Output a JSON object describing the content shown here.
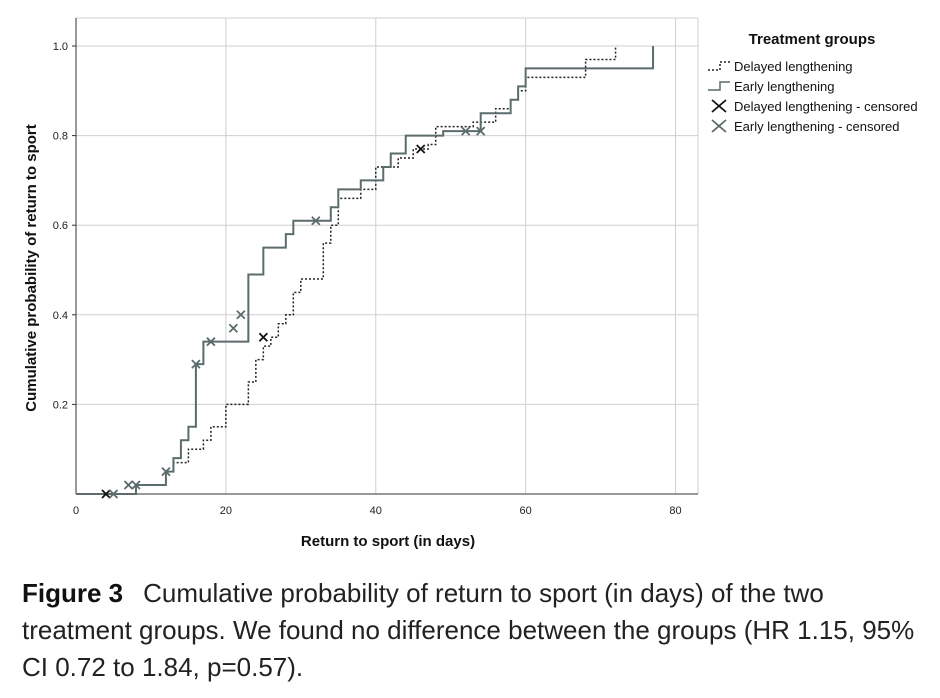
{
  "chart_data": {
    "type": "line",
    "title": "",
    "xlabel": "Return to sport (in days)",
    "ylabel": "Cumulative probability of return to sport",
    "xlim": [
      0,
      83
    ],
    "ylim": [
      0,
      1.0
    ],
    "x_ticks": [
      "0",
      "20",
      "40",
      "60",
      "80"
    ],
    "y_ticks": [
      "0.2",
      "0.4",
      "0.6",
      "0.8",
      "1.0"
    ],
    "grid": true,
    "legend_title": "Treatment groups",
    "legend_position": "top-right",
    "series": [
      {
        "name": "Delayed lengthening",
        "style": "dotted-step",
        "color": "#222222",
        "x": [
          0,
          8,
          12,
          13,
          15,
          17,
          18,
          20,
          23,
          24,
          25,
          26,
          27,
          28,
          29,
          30,
          33,
          34,
          35,
          38,
          40,
          43,
          45,
          47,
          48,
          53,
          56,
          58,
          59,
          60,
          68,
          72
        ],
        "y": [
          0,
          0.02,
          0.05,
          0.07,
          0.1,
          0.12,
          0.15,
          0.2,
          0.25,
          0.3,
          0.33,
          0.35,
          0.38,
          0.4,
          0.45,
          0.48,
          0.56,
          0.6,
          0.66,
          0.68,
          0.73,
          0.75,
          0.77,
          0.78,
          0.82,
          0.83,
          0.86,
          0.88,
          0.9,
          0.93,
          0.97,
          1.0
        ],
        "censored": [
          [
            4,
            0
          ],
          [
            25,
            0.35
          ],
          [
            46,
            0.77
          ]
        ]
      },
      {
        "name": "Early lengthening",
        "style": "solid-step",
        "color": "#5c6b6b",
        "x": [
          0,
          8,
          12,
          13,
          14,
          15,
          16,
          17,
          23,
          25,
          28,
          29,
          34,
          35,
          38,
          41,
          42,
          44,
          49,
          54,
          58,
          59,
          60,
          77
        ],
        "y": [
          0,
          0.02,
          0.05,
          0.08,
          0.12,
          0.15,
          0.29,
          0.34,
          0.49,
          0.55,
          0.58,
          0.61,
          0.64,
          0.68,
          0.7,
          0.73,
          0.76,
          0.8,
          0.81,
          0.85,
          0.88,
          0.91,
          0.95,
          1.0
        ],
        "censored": [
          [
            5,
            0
          ],
          [
            7,
            0.02
          ],
          [
            8,
            0.02
          ],
          [
            12,
            0.05
          ],
          [
            16,
            0.29
          ],
          [
            18,
            0.34
          ],
          [
            21,
            0.37
          ],
          [
            22,
            0.4
          ],
          [
            32,
            0.61
          ],
          [
            52,
            0.81
          ],
          [
            54,
            0.81
          ]
        ]
      }
    ],
    "legend_entries": [
      {
        "label": "Delayed lengthening",
        "symbol": "dotted-step",
        "color": "#222222"
      },
      {
        "label": "Early lengthening",
        "symbol": "solid-step",
        "color": "#5c6b6b"
      },
      {
        "label": "Delayed lengthening - censored",
        "symbol": "x",
        "color": "#111111"
      },
      {
        "label": "Early lengthening - censored",
        "symbol": "x",
        "color": "#5c6b6b"
      }
    ]
  },
  "caption": {
    "label": "Figure 3",
    "text": "Cumulative probability of return to sport (in days) of the two treatment groups. We found no difference between the groups (HR 1.15, 95% CI 0.72 to 1.84, p=0.57)."
  }
}
